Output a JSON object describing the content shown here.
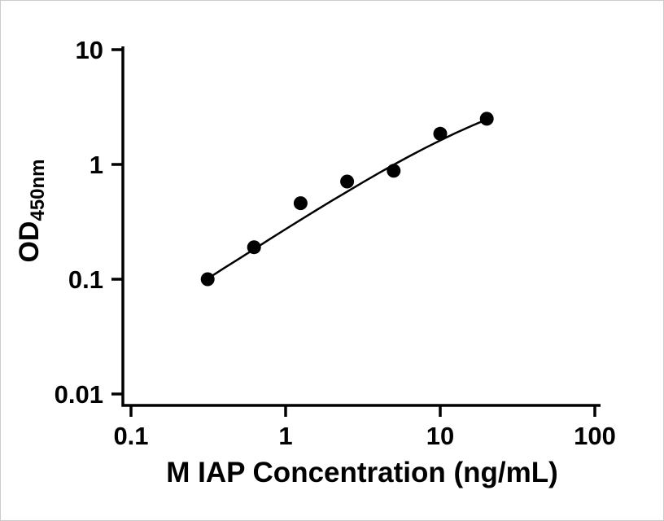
{
  "chart_data": {
    "type": "scatter",
    "title": "",
    "xlabel": "M IAP Concentration (ng/mL)",
    "ylabel_main": "OD",
    "ylabel_sub": "450nm",
    "x_scale": "log",
    "y_scale": "log",
    "xlim": [
      0.1,
      100
    ],
    "ylim": [
      0.01,
      10
    ],
    "grid": false,
    "legend": "none",
    "x_ticks": {
      "values": [
        0.1,
        1,
        10,
        100
      ],
      "labels": [
        "0.1",
        "1",
        "10",
        "100"
      ]
    },
    "y_ticks": {
      "values": [
        0.01,
        0.1,
        1,
        10
      ],
      "labels": [
        "0.01",
        "0.1",
        "1",
        "10"
      ]
    },
    "series": [
      {
        "name": "standard-points",
        "type": "scatter",
        "marker": "filled-circle",
        "color": "#000000",
        "x": [
          0.313,
          0.625,
          1.25,
          2.5,
          5,
          10,
          20
        ],
        "y": [
          0.1,
          0.19,
          0.46,
          0.71,
          0.88,
          1.85,
          2.5
        ]
      },
      {
        "name": "fit-curve",
        "type": "line",
        "color": "#000000",
        "x": [
          0.32,
          0.4,
          0.5,
          0.63,
          0.8,
          1.0,
          1.25,
          1.6,
          2.0,
          2.5,
          3.2,
          4.0,
          5.0,
          6.3,
          8.0,
          10,
          12.5,
          16,
          20
        ],
        "y": [
          0.103,
          0.125,
          0.151,
          0.184,
          0.226,
          0.273,
          0.329,
          0.404,
          0.485,
          0.58,
          0.706,
          0.839,
          0.993,
          1.177,
          1.393,
          1.62,
          1.871,
          2.173,
          2.466
        ]
      }
    ]
  },
  "colors": {
    "background": "#ffffff",
    "axis": "#000000",
    "text": "#000000"
  }
}
